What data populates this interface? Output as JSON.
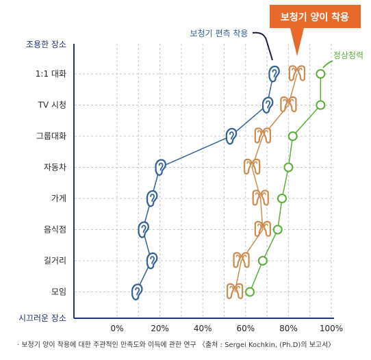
{
  "chart_data": {
    "type": "line",
    "callouts": {
      "binaural": "보청기 양이 착용",
      "monaural": "보청기 편측 착용",
      "normal": "정상청력"
    },
    "y_top_label": "조용한 장소",
    "y_bottom_label": "시끄러운 장소",
    "categories": [
      "1:1 대화",
      "TV 시청",
      "그룹대화",
      "자동차",
      "가게",
      "음식점",
      "길거리",
      "모임"
    ],
    "xticks": [
      "0%",
      "20%",
      "40%",
      "60%",
      "80%",
      "100%"
    ],
    "xlim": [
      0,
      100
    ],
    "series": [
      {
        "name": "보청기 편측 착용",
        "marker": "ear-icon",
        "values": [
          73,
          70,
          53,
          20,
          16,
          12,
          16,
          9
        ]
      },
      {
        "name": "보청기 양이 착용",
        "marker": "binaural-ear-icon",
        "values": [
          84,
          80,
          68,
          63,
          67,
          68,
          58,
          55
        ]
      },
      {
        "name": "정상청력",
        "marker": "circle",
        "values": [
          95,
          95,
          82,
          80,
          77,
          75,
          68,
          62
        ]
      }
    ],
    "colors": {
      "monaural": "#2f5f96",
      "binaural": "#cc8a4d",
      "normal": "#58ae34",
      "callout_bg": "#e8692a",
      "axis": "#1d3173",
      "grid": "#c4c4c4"
    },
    "grid": true
  },
  "footnote": "· 보청기 양이 착용에 대한 주관적인 만족도와 이득에 관한 연구 〈출처 : Sergei Kochkin, (Ph.D)의 보고서〉"
}
